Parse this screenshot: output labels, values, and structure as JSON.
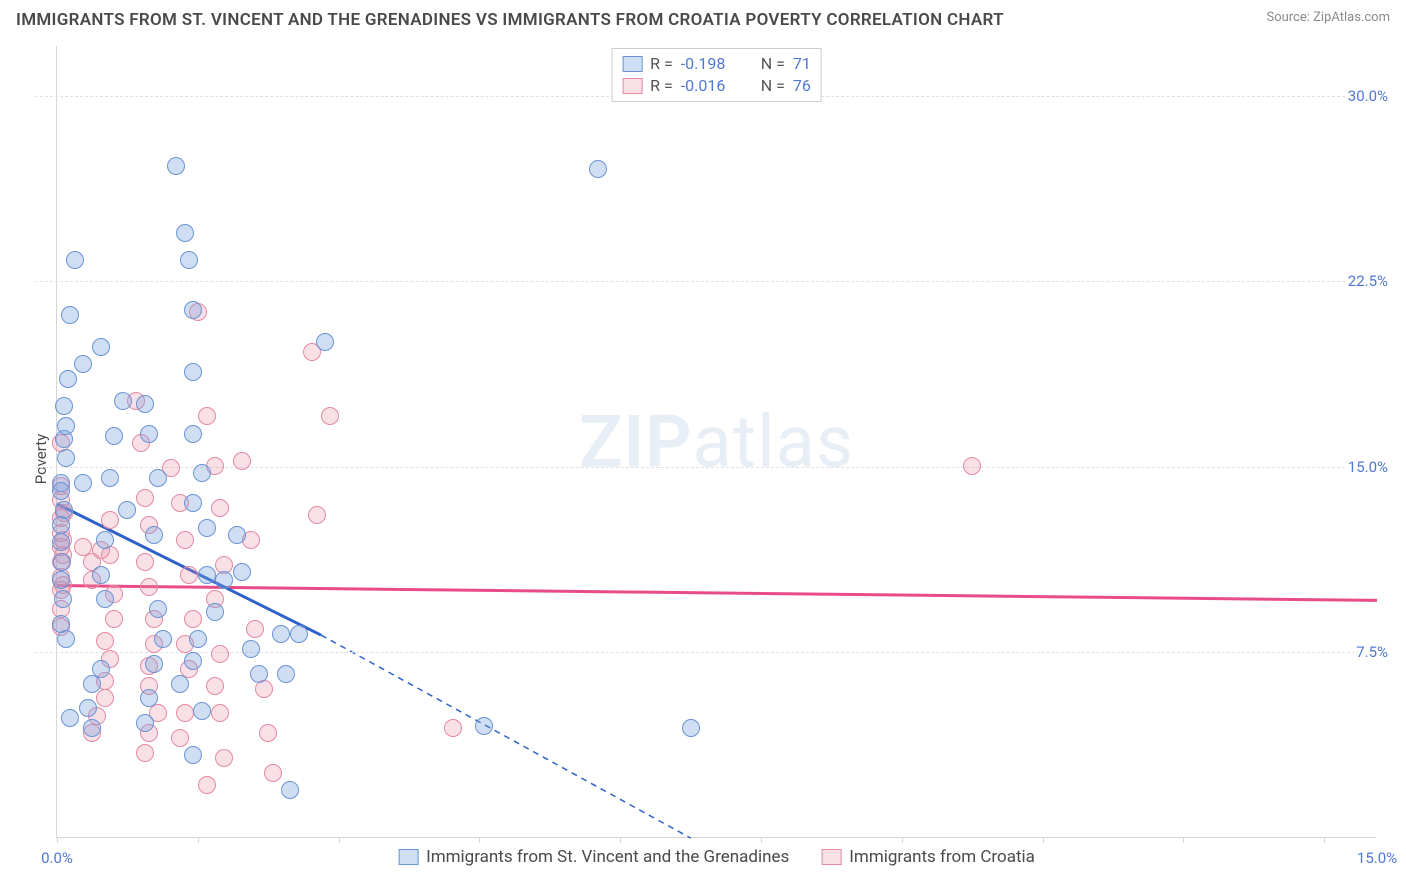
{
  "title": "IMMIGRANTS FROM ST. VINCENT AND THE GRENADINES VS IMMIGRANTS FROM CROATIA POVERTY CORRELATION CHART",
  "source": "Source: ZipAtlas.com",
  "y_label": "Poverty",
  "watermark_a": "ZIP",
  "watermark_b": "atlas",
  "colors": {
    "series_a_fill": "rgba(120,160,220,0.35)",
    "series_a_stroke": "#6a94d4",
    "series_b_fill": "rgba(235,140,165,0.28)",
    "series_b_stroke": "#e48aa3",
    "line_a": "#2e62c9",
    "line_b": "#e84c88",
    "axis_text": "#4f77d6"
  },
  "point_radius": 9,
  "chart": {
    "type": "scatter",
    "x_min": 0,
    "x_max": 15,
    "y_min": 0,
    "y_max": 32,
    "y_ticks": [
      {
        "v": 7.5,
        "label": "7.5%"
      },
      {
        "v": 15.0,
        "label": "15.0%"
      },
      {
        "v": 22.5,
        "label": "22.5%"
      },
      {
        "v": 30.0,
        "label": "30.0%"
      }
    ],
    "x_tick_marks": [
      0,
      1.6,
      3.2,
      4.8,
      6.4,
      8.0,
      9.6,
      11.2,
      12.8,
      14.4
    ],
    "x_labels": [
      {
        "v": 0,
        "label": "0.0%"
      },
      {
        "v": 15,
        "label": "15.0%"
      }
    ]
  },
  "legend_top": [
    {
      "swatch": "a",
      "r_sym": "R  =",
      "r_val": "-0.198",
      "n_sym": "N  =",
      "n_val": "71"
    },
    {
      "swatch": "b",
      "r_sym": "R  =",
      "r_val": "-0.016",
      "n_sym": "N  =",
      "n_val": "76"
    }
  ],
  "legend_bottom": [
    {
      "swatch": "a",
      "label": "Immigrants from St. Vincent and the Grenadines"
    },
    {
      "swatch": "b",
      "label": "Immigrants from Croatia"
    }
  ],
  "trend_lines": {
    "a_solid": {
      "x1": 0,
      "y1": 13.5,
      "x2": 3.0,
      "y2": 8.2
    },
    "a_dash": {
      "x1": 3.0,
      "y1": 8.2,
      "x2": 7.2,
      "y2": 0
    },
    "b_solid": {
      "x1": 0,
      "y1": 10.2,
      "x2": 15.0,
      "y2": 9.6
    }
  },
  "series_a": [
    [
      0.05,
      14.3
    ],
    [
      0.05,
      14.0
    ],
    [
      0.08,
      13.2
    ],
    [
      0.08,
      16.1
    ],
    [
      0.1,
      16.6
    ],
    [
      0.08,
      17.4
    ],
    [
      0.12,
      18.5
    ],
    [
      0.1,
      15.3
    ],
    [
      0.05,
      12.6
    ],
    [
      0.05,
      11.9
    ],
    [
      0.06,
      11.1
    ],
    [
      0.05,
      10.4
    ],
    [
      0.07,
      9.6
    ],
    [
      0.04,
      8.6
    ],
    [
      0.1,
      8.0
    ],
    [
      0.15,
      21.1
    ],
    [
      0.2,
      23.3
    ],
    [
      0.3,
      19.1
    ],
    [
      0.5,
      19.8
    ],
    [
      0.3,
      14.3
    ],
    [
      0.6,
      14.5
    ],
    [
      0.65,
      16.2
    ],
    [
      0.75,
      17.6
    ],
    [
      0.8,
      13.2
    ],
    [
      0.55,
      12.0
    ],
    [
      0.5,
      10.6
    ],
    [
      0.55,
      9.6
    ],
    [
      0.5,
      6.8
    ],
    [
      0.4,
      6.2
    ],
    [
      0.35,
      5.2
    ],
    [
      0.4,
      4.4
    ],
    [
      0.15,
      4.8
    ],
    [
      1.0,
      17.5
    ],
    [
      1.05,
      16.3
    ],
    [
      1.15,
      14.5
    ],
    [
      1.1,
      12.2
    ],
    [
      1.15,
      9.2
    ],
    [
      1.2,
      8.0
    ],
    [
      1.1,
      7.0
    ],
    [
      1.05,
      5.6
    ],
    [
      1.0,
      4.6
    ],
    [
      1.35,
      27.1
    ],
    [
      1.45,
      24.4
    ],
    [
      1.5,
      23.3
    ],
    [
      1.55,
      21.3
    ],
    [
      1.55,
      18.8
    ],
    [
      1.55,
      16.3
    ],
    [
      1.65,
      14.7
    ],
    [
      1.55,
      13.5
    ],
    [
      1.7,
      12.5
    ],
    [
      1.7,
      10.6
    ],
    [
      1.9,
      10.4
    ],
    [
      1.8,
      9.1
    ],
    [
      1.6,
      8.0
    ],
    [
      1.55,
      7.1
    ],
    [
      1.4,
      6.2
    ],
    [
      1.65,
      5.1
    ],
    [
      1.55,
      3.3
    ],
    [
      2.05,
      12.2
    ],
    [
      2.1,
      10.7
    ],
    [
      2.2,
      7.6
    ],
    [
      2.3,
      6.6
    ],
    [
      2.55,
      8.2
    ],
    [
      2.65,
      1.9
    ],
    [
      2.75,
      8.2
    ],
    [
      2.6,
      6.6
    ],
    [
      3.05,
      20.0
    ],
    [
      4.85,
      4.5
    ],
    [
      6.15,
      27.0
    ],
    [
      7.2,
      4.4
    ]
  ],
  "series_b": [
    [
      0.05,
      15.9
    ],
    [
      0.05,
      14.2
    ],
    [
      0.05,
      13.6
    ],
    [
      0.05,
      12.9
    ],
    [
      0.05,
      12.3
    ],
    [
      0.05,
      11.7
    ],
    [
      0.05,
      11.1
    ],
    [
      0.05,
      10.5
    ],
    [
      0.05,
      10.0
    ],
    [
      0.05,
      9.2
    ],
    [
      0.05,
      8.5
    ],
    [
      0.07,
      10.2
    ],
    [
      0.07,
      11.4
    ],
    [
      0.07,
      12.0
    ],
    [
      0.08,
      13.1
    ],
    [
      0.3,
      11.7
    ],
    [
      0.4,
      11.1
    ],
    [
      0.4,
      10.4
    ],
    [
      0.5,
      11.6
    ],
    [
      0.6,
      12.8
    ],
    [
      0.6,
      11.4
    ],
    [
      0.65,
      9.8
    ],
    [
      0.65,
      8.8
    ],
    [
      0.55,
      7.9
    ],
    [
      0.6,
      7.2
    ],
    [
      0.55,
      6.3
    ],
    [
      0.55,
      5.6
    ],
    [
      0.45,
      4.9
    ],
    [
      0.4,
      4.2
    ],
    [
      0.9,
      17.6
    ],
    [
      0.95,
      15.9
    ],
    [
      1.0,
      13.7
    ],
    [
      1.05,
      12.6
    ],
    [
      1.0,
      11.1
    ],
    [
      1.05,
      10.1
    ],
    [
      1.1,
      8.8
    ],
    [
      1.1,
      7.8
    ],
    [
      1.05,
      6.9
    ],
    [
      1.05,
      6.1
    ],
    [
      1.15,
      5.0
    ],
    [
      1.05,
      4.2
    ],
    [
      1.0,
      3.4
    ],
    [
      1.3,
      14.9
    ],
    [
      1.4,
      13.5
    ],
    [
      1.45,
      12.0
    ],
    [
      1.5,
      10.6
    ],
    [
      1.55,
      8.8
    ],
    [
      1.45,
      7.8
    ],
    [
      1.5,
      6.8
    ],
    [
      1.45,
      5.0
    ],
    [
      1.4,
      4.0
    ],
    [
      1.6,
      21.2
    ],
    [
      1.7,
      17.0
    ],
    [
      1.8,
      15.0
    ],
    [
      1.85,
      13.3
    ],
    [
      1.9,
      11.0
    ],
    [
      1.8,
      9.6
    ],
    [
      1.85,
      7.4
    ],
    [
      1.8,
      6.1
    ],
    [
      1.85,
      5.0
    ],
    [
      1.9,
      3.2
    ],
    [
      1.7,
      2.1
    ],
    [
      2.1,
      15.2
    ],
    [
      2.2,
      12.0
    ],
    [
      2.25,
      8.4
    ],
    [
      2.35,
      6.0
    ],
    [
      2.4,
      4.2
    ],
    [
      2.45,
      2.6
    ],
    [
      2.9,
      19.6
    ],
    [
      2.95,
      13.0
    ],
    [
      3.1,
      17.0
    ],
    [
      4.5,
      4.4
    ],
    [
      10.4,
      15.0
    ]
  ]
}
